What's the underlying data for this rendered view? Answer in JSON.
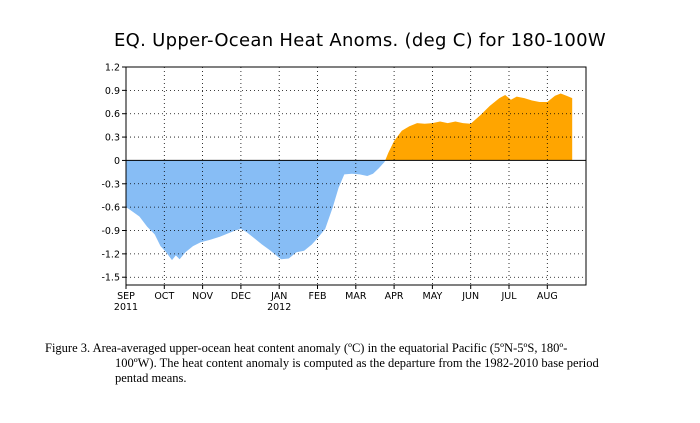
{
  "chart_data": {
    "type": "area",
    "title": "EQ. Upper-Ocean Heat Anoms. (deg C) for 180-100W",
    "xlabel": "",
    "ylabel": "",
    "ylim": [
      -1.6,
      1.2
    ],
    "y_ticks": [
      "1.2",
      "0.9",
      "0.6",
      "0.3",
      "0",
      "-0.3",
      "-0.6",
      "-0.9",
      "-1.2",
      "-1.5"
    ],
    "x_ticks": [
      {
        "month": "SEP",
        "year": "2011"
      },
      {
        "month": "OCT",
        "year": ""
      },
      {
        "month": "NOV",
        "year": ""
      },
      {
        "month": "DEC",
        "year": ""
      },
      {
        "month": "JAN",
        "year": "2012"
      },
      {
        "month": "FEB",
        "year": ""
      },
      {
        "month": "MAR",
        "year": ""
      },
      {
        "month": "APR",
        "year": ""
      },
      {
        "month": "MAY",
        "year": ""
      },
      {
        "month": "JUN",
        "year": ""
      },
      {
        "month": "JUL",
        "year": ""
      },
      {
        "month": "AUG",
        "year": ""
      }
    ],
    "grid": true,
    "positive_color": "#FFA500",
    "negative_color": "#87BDF5",
    "x_unit": "months since 2011-09-01",
    "points": [
      [
        0.0,
        -0.6
      ],
      [
        0.15,
        -0.65
      ],
      [
        0.35,
        -0.72
      ],
      [
        0.55,
        -0.85
      ],
      [
        0.75,
        -0.95
      ],
      [
        0.9,
        -1.1
      ],
      [
        1.05,
        -1.18
      ],
      [
        1.2,
        -1.28
      ],
      [
        1.3,
        -1.22
      ],
      [
        1.4,
        -1.27
      ],
      [
        1.55,
        -1.18
      ],
      [
        1.75,
        -1.1
      ],
      [
        1.95,
        -1.05
      ],
      [
        2.2,
        -1.02
      ],
      [
        2.45,
        -0.98
      ],
      [
        2.65,
        -0.94
      ],
      [
        2.85,
        -0.9
      ],
      [
        3.0,
        -0.88
      ],
      [
        3.15,
        -0.92
      ],
      [
        3.35,
        -1.0
      ],
      [
        3.55,
        -1.08
      ],
      [
        3.75,
        -1.15
      ],
      [
        3.95,
        -1.23
      ],
      [
        4.05,
        -1.27
      ],
      [
        4.25,
        -1.26
      ],
      [
        4.45,
        -1.18
      ],
      [
        4.65,
        -1.16
      ],
      [
        4.85,
        -1.08
      ],
      [
        5.0,
        -1.0
      ],
      [
        5.2,
        -0.88
      ],
      [
        5.4,
        -0.6
      ],
      [
        5.55,
        -0.35
      ],
      [
        5.7,
        -0.18
      ],
      [
        5.9,
        -0.17
      ],
      [
        6.1,
        -0.18
      ],
      [
        6.3,
        -0.2
      ],
      [
        6.45,
        -0.17
      ],
      [
        6.6,
        -0.1
      ],
      [
        6.75,
        -0.02
      ],
      [
        6.85,
        0.1
      ],
      [
        7.0,
        0.25
      ],
      [
        7.2,
        0.38
      ],
      [
        7.4,
        0.44
      ],
      [
        7.6,
        0.48
      ],
      [
        7.8,
        0.47
      ],
      [
        8.0,
        0.48
      ],
      [
        8.2,
        0.5
      ],
      [
        8.4,
        0.48
      ],
      [
        8.6,
        0.5
      ],
      [
        8.8,
        0.48
      ],
      [
        9.0,
        0.47
      ],
      [
        9.25,
        0.58
      ],
      [
        9.5,
        0.7
      ],
      [
        9.75,
        0.8
      ],
      [
        9.9,
        0.84
      ],
      [
        10.05,
        0.78
      ],
      [
        10.2,
        0.82
      ],
      [
        10.4,
        0.8
      ],
      [
        10.6,
        0.77
      ],
      [
        10.8,
        0.75
      ],
      [
        11.0,
        0.75
      ],
      [
        11.2,
        0.83
      ],
      [
        11.35,
        0.86
      ],
      [
        11.5,
        0.83
      ],
      [
        11.65,
        0.8
      ]
    ]
  },
  "caption": {
    "line1": "Figure 3. Area-averaged upper-ocean heat content anomaly (ºC) in the equatorial Pacific (5ºN-5ºS, 180º-",
    "line2": "100ºW). The heat content anomaly is computed as the departure from the 1982-2010   base period",
    "line3": "pentad means."
  }
}
